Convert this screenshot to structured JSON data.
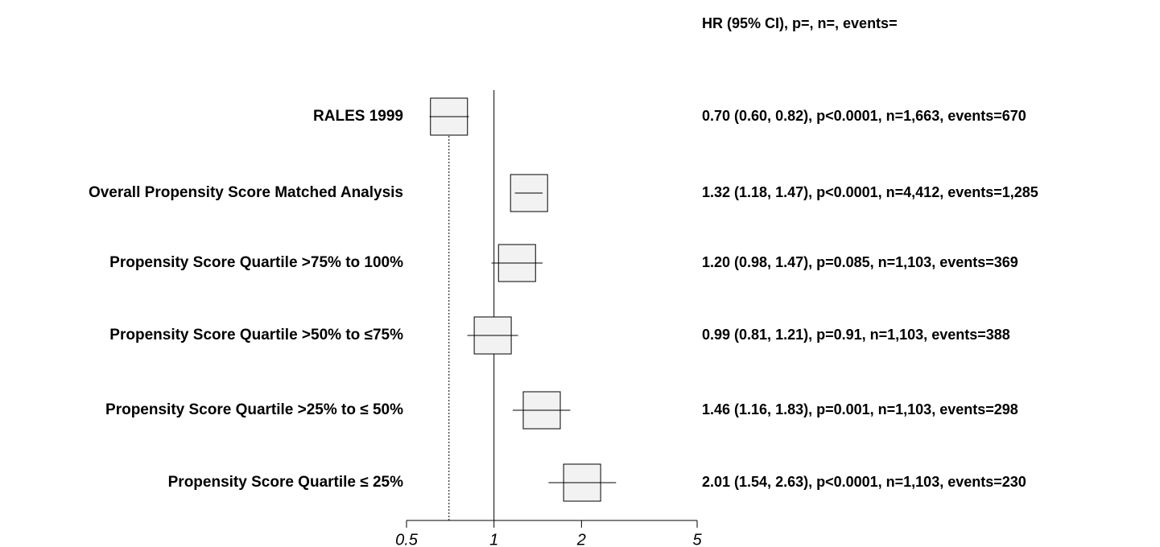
{
  "chart_data": {
    "type": "forest",
    "column_header": "HR (95% CI), p=, n=, events=",
    "categories": [
      "RALES 1999",
      "Overall Propensity Score Matched Analysis",
      "Propensity Score Quartile >75% to 100%",
      "Propensity Score Quartile  >50% to ≤75%",
      "Propensity Score Quartile  >25% to ≤ 50%",
      "Propensity Score Quartile ≤ 25%"
    ],
    "values": [
      0.7,
      1.32,
      1.2,
      0.99,
      1.46,
      2.01
    ],
    "lower": [
      0.6,
      1.18,
      0.98,
      0.81,
      1.16,
      1.54
    ],
    "upper": [
      0.82,
      1.47,
      1.47,
      1.21,
      1.83,
      2.63
    ],
    "value_labels": [
      "0.70 (0.60, 0.82), p<0.0001, n=1,663, events=670",
      "1.32 (1.18, 1.47), p<0.0001, n=4,412, events=1,285",
      "1.20 (0.98, 1.47), p=0.085, n=1,103, events=369",
      "0.99 (0.81, 1.21), p=0.91, n=1,103, events=388",
      "1.46 (1.16, 1.83), p=0.001, n=1,103, events=298",
      "2.01 (1.54, 2.63), p<0.0001, n=1,103, events=230"
    ],
    "reference_value": 1,
    "xlim": [
      0.5,
      5
    ],
    "xticks": [
      0.5,
      1,
      2,
      5
    ],
    "log_x": true,
    "box_color": "#f2f2f2"
  }
}
